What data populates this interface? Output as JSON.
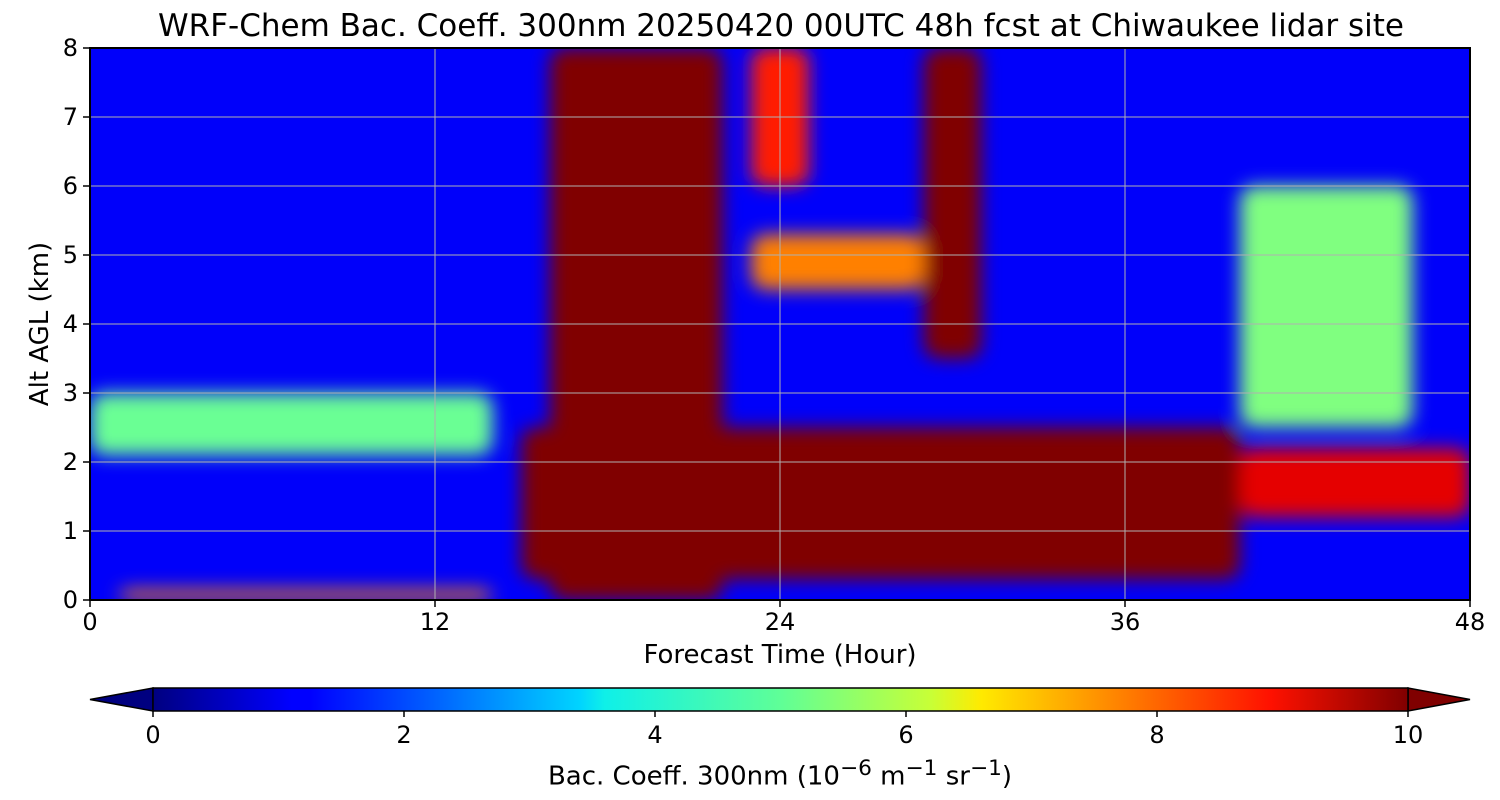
{
  "chart_data": {
    "type": "heatmap",
    "title": "WRF-Chem Bac. Coeff. 300nm  20250420 00UTC 48h fcst at Chiwaukee lidar site",
    "xlabel": "Forecast Time (Hour)",
    "ylabel": "Alt AGL (km)",
    "xlim": [
      0,
      48
    ],
    "ylim": [
      0,
      8
    ],
    "x_ticks": [
      0,
      12,
      24,
      36,
      48
    ],
    "y_ticks": [
      0,
      1,
      2,
      3,
      4,
      5,
      6,
      7,
      8
    ],
    "grid": true,
    "colormap": "jet",
    "colorbar": {
      "label_main": "Bac. Coeff. 300nm  (10",
      "label_exp1": "−6",
      "label_mid": " m",
      "label_exp2": "−1",
      "label_end": " sr",
      "label_exp3": "−1",
      "label_close": ")",
      "range": [
        0,
        10
      ],
      "ticks": [
        0,
        2,
        4,
        6,
        8,
        10
      ],
      "extend": "both",
      "under_color": "#000080",
      "over_color": "#800000"
    },
    "features": [
      {
        "region": "elevated aerosol layer",
        "x_range": [
          0,
          14
        ],
        "y_range": [
          2.1,
          3.0
        ],
        "value": 4.8
      },
      {
        "region": "surface layer",
        "x_range": [
          1,
          14
        ],
        "y_range": [
          0,
          0.15
        ],
        "value": 7.5
      },
      {
        "region": "upper plume",
        "x_range": [
          16,
          22
        ],
        "y_range": [
          0,
          8
        ],
        "value": 10.5
      },
      {
        "region": "lower boundary layer plume",
        "x_range": [
          15,
          40
        ],
        "y_range": [
          0.3,
          2.5
        ],
        "value": 10.5
      },
      {
        "region": "upper column",
        "x_range": [
          23,
          25
        ],
        "y_range": [
          6,
          8
        ],
        "value": 8.5
      },
      {
        "region": "upper plume",
        "x_range": [
          29,
          31
        ],
        "y_range": [
          3.5,
          8
        ],
        "value": 10.5
      },
      {
        "region": "mid-level layer",
        "x_range": [
          23,
          29
        ],
        "y_range": [
          4.5,
          5.3
        ],
        "value": 7.5
      },
      {
        "region": "late layer",
        "x_range": [
          40,
          48
        ],
        "y_range": [
          1.2,
          2.2
        ],
        "value": 9.0
      },
      {
        "region": "late upper plume",
        "x_range": [
          40,
          46
        ],
        "y_range": [
          2.5,
          6
        ],
        "value": 5.0
      }
    ]
  }
}
